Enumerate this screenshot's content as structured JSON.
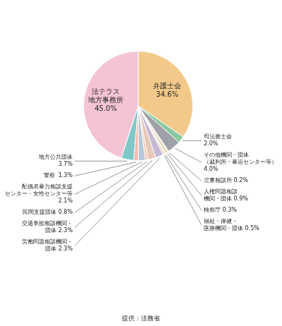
{
  "chart_data": {
    "type": "pie",
    "categories": [
      "弁護士会\n34.6%",
      "司法書士会\n2.0%",
      "その他機関・団体\n（裁判所・暴追センター等）\n4.0%",
      "児童相談所 0.2%",
      "人権問題相談\n機関・団体 0.9%",
      "検察庁 0.3%",
      "福祉・保健・\n医療機関・団体 0.5%",
      "労働問題相談機関・\n団体 2.3%",
      "交通事故相談機関・\n団体 2.3%",
      "民間支援団体 0.8%",
      "配偶者暴力相談支援\nセンター・女性センター等\n2.1%",
      "警察  1.3%",
      "地方公共団体\n3.7%",
      "法テラス\n地方事務所\n45.0%"
    ],
    "values": [
      34.6,
      2.0,
      4.0,
      0.2,
      0.9,
      0.3,
      0.5,
      2.3,
      2.3,
      0.8,
      2.1,
      1.3,
      3.7,
      45.0
    ],
    "colors": [
      "#F2C98A",
      "#88C9A0",
      "#A0A0A8",
      "#C8E4D8",
      "#E8D8B8",
      "#C8D0C0",
      "#E8CEB0",
      "#C4B8D4",
      "#E8C8B8",
      "#F0C8B0",
      "#B4C8D8",
      "#F4B8A8",
      "#80C8C8",
      "#F4C4D4"
    ],
    "annotations": [
      "提供：法務省"
    ]
  }
}
